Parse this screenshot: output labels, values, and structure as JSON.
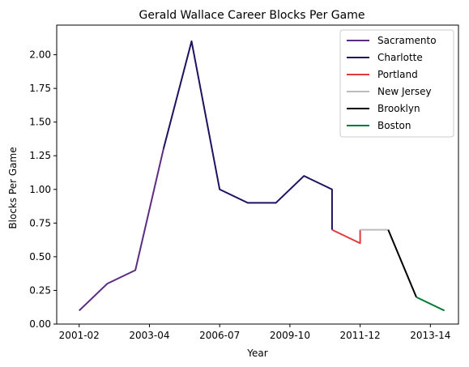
{
  "chart_data": {
    "type": "line",
    "title": "Gerald Wallace Career Blocks Per Game",
    "xlabel": "Year",
    "ylabel": "Blocks Per Game",
    "x_tick_labels": [
      "2001-02",
      "2003-04",
      "2006-07",
      "2009-10",
      "2011-12",
      "2013-14"
    ],
    "x_tick_positions": [
      0,
      2.5,
      5,
      7.5,
      10,
      12.5
    ],
    "xlim": [
      -0.8,
      13.5
    ],
    "ylim": [
      0,
      2.22
    ],
    "y_ticks": [
      0.0,
      0.25,
      0.5,
      0.75,
      1.0,
      1.25,
      1.5,
      1.75,
      2.0
    ],
    "y_tick_labels": [
      "0.00",
      "0.25",
      "0.50",
      "0.75",
      "1.00",
      "1.25",
      "1.50",
      "1.75",
      "2.00"
    ],
    "legend_position": "top-right",
    "grid": false,
    "series": [
      {
        "name": "Sacramento",
        "color": "#5a2d82",
        "x": [
          0,
          1,
          2,
          3
        ],
        "y": [
          0.1,
          0.3,
          0.4,
          1.3
        ]
      },
      {
        "name": "Charlotte",
        "color": "#1d1160",
        "x": [
          3,
          4,
          5,
          6,
          7,
          8,
          9,
          9
        ],
        "y": [
          1.3,
          2.1,
          1.0,
          0.9,
          0.9,
          1.1,
          1.0,
          0.7
        ]
      },
      {
        "name": "Portland",
        "color": "#e03a3e",
        "x": [
          9,
          10,
          10
        ],
        "y": [
          0.7,
          0.6,
          0.7
        ]
      },
      {
        "name": "New Jersey",
        "color": "#bbbbbb",
        "x": [
          10,
          11
        ],
        "y": [
          0.7,
          0.7
        ]
      },
      {
        "name": "Brooklyn",
        "color": "#000000",
        "x": [
          11,
          12
        ],
        "y": [
          0.7,
          0.2
        ]
      },
      {
        "name": "Boston",
        "color": "#007a33",
        "x": [
          12,
          13
        ],
        "y": [
          0.2,
          0.1
        ]
      }
    ]
  }
}
